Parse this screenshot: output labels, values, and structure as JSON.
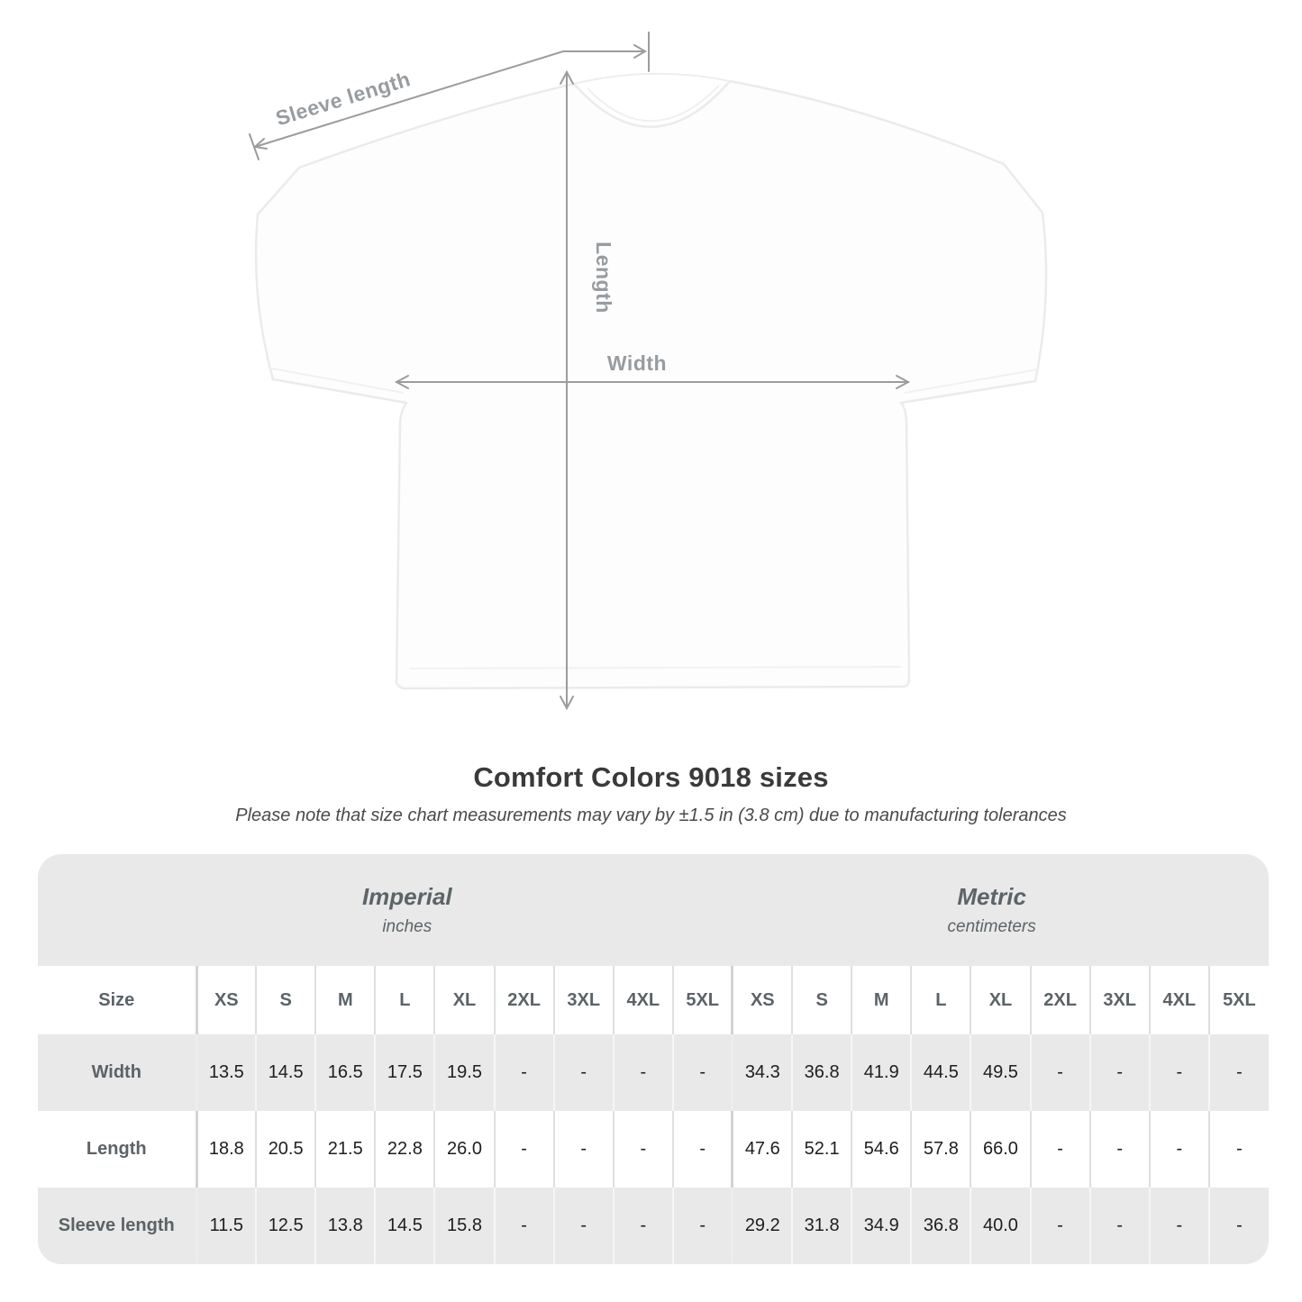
{
  "diagram": {
    "labels": {
      "sleeve": "Sleeve length",
      "length": "Length",
      "width": "Width"
    },
    "arrow_color": "#9c9c9c",
    "label_color": "#979ca0",
    "shirt_color": "#ffffff"
  },
  "chart_data": {
    "type": "table",
    "title": "Comfort Colors 9018 sizes",
    "subtitle": "Please note that size chart measurements may vary by ±1.5 in (3.8 cm) due to manufacturing tolerances",
    "size_label": "Size",
    "sizes": [
      "XS",
      "S",
      "M",
      "L",
      "XL",
      "2XL",
      "3XL",
      "4XL",
      "5XL"
    ],
    "unit_groups": [
      {
        "name": "Imperial",
        "unit": "inches"
      },
      {
        "name": "Metric",
        "unit": "centimeters"
      }
    ],
    "rows": [
      {
        "label": "Width",
        "imperial": [
          "13.5",
          "14.5",
          "16.5",
          "17.5",
          "19.5",
          "-",
          "-",
          "-",
          "-"
        ],
        "metric": [
          "34.3",
          "36.8",
          "41.9",
          "44.5",
          "49.5",
          "-",
          "-",
          "-",
          "-"
        ]
      },
      {
        "label": "Length",
        "imperial": [
          "18.8",
          "20.5",
          "21.5",
          "22.8",
          "26.0",
          "-",
          "-",
          "-",
          "-"
        ],
        "metric": [
          "47.6",
          "52.1",
          "54.6",
          "57.8",
          "66.0",
          "-",
          "-",
          "-",
          "-"
        ]
      },
      {
        "label": "Sleeve length",
        "imperial": [
          "11.5",
          "12.5",
          "13.8",
          "14.5",
          "15.8",
          "-",
          "-",
          "-",
          "-"
        ],
        "metric": [
          "29.2",
          "31.8",
          "34.9",
          "36.8",
          "40.0",
          "-",
          "-",
          "-",
          "-"
        ]
      }
    ],
    "colors": {
      "band_bg": "#e9e9e9",
      "row_alt_bg": "#e9e9e9",
      "header_text": "#5b6367",
      "value_text": "#1e1e1e",
      "title_text": "#3a3a3a"
    }
  }
}
